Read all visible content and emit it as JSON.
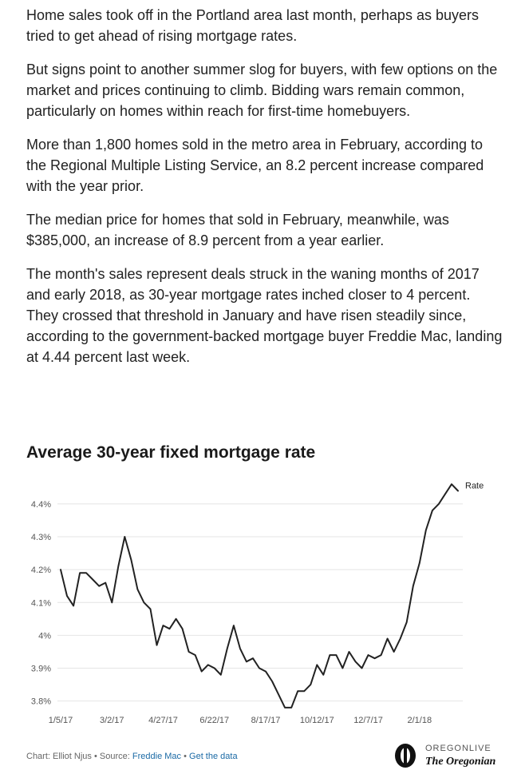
{
  "article": {
    "paragraphs": [
      "Home sales took off in the Portland area last month, perhaps as buyers tried to get ahead of rising mortgage rates.",
      "But signs point to another summer slog for buyers, with few options on the market and prices continuing to climb. Bidding wars remain common, particularly on homes within reach for first-time homebuyers.",
      "More than 1,800 homes sold in the metro area in February, according to the Regional Multiple Listing Service, an 8.2 percent increase compared with the year prior.",
      "The median price for homes that sold in February, meanwhile, was $385,000, an increase of 8.9 percent from a year earlier.",
      "The month's sales represent deals struck in the waning months of 2017 and early 2018, as 30-year mortgage rates inched closer to 4 percent. They crossed that threshold in January and have risen steadily since, according to the government-backed mortgage buyer Freddie Mac, landing at 4.44 percent last week."
    ]
  },
  "chart_data": {
    "type": "line",
    "title": "Average 30-year fixed mortgage rate",
    "xlabel": "",
    "ylabel": "",
    "ylim": [
      3.77,
      4.48
    ],
    "yticks": [
      3.8,
      3.9,
      4.0,
      4.1,
      4.2,
      4.3,
      4.4
    ],
    "ytick_labels": [
      "3.8%",
      "3.9%",
      "4%",
      "4.1%",
      "4.2%",
      "4.3%",
      "4.4%"
    ],
    "xtick_labels": [
      "1/5/17",
      "3/2/17",
      "4/27/17",
      "6/22/17",
      "8/17/17",
      "10/12/17",
      "12/7/17",
      "2/1/18"
    ],
    "xtick_index": [
      0,
      8,
      16,
      24,
      32,
      40,
      48,
      56
    ],
    "grid": true,
    "legend_position": "end-of-line",
    "series": [
      {
        "name": "Rate",
        "color": "#222222",
        "values": [
          4.2,
          4.12,
          4.09,
          4.19,
          4.19,
          4.17,
          4.15,
          4.16,
          4.1,
          4.21,
          4.3,
          4.23,
          4.14,
          4.1,
          4.08,
          3.97,
          4.03,
          4.02,
          4.05,
          4.02,
          3.95,
          3.94,
          3.89,
          3.91,
          3.9,
          3.88,
          3.96,
          4.03,
          3.96,
          3.92,
          3.93,
          3.9,
          3.89,
          3.86,
          3.82,
          3.78,
          3.78,
          3.83,
          3.83,
          3.85,
          3.91,
          3.88,
          3.94,
          3.94,
          3.9,
          3.95,
          3.92,
          3.9,
          3.94,
          3.93,
          3.94,
          3.99,
          3.95,
          3.99,
          4.04,
          4.15,
          4.22,
          4.32,
          4.38,
          4.4,
          4.43,
          4.46,
          4.44
        ]
      }
    ]
  },
  "footer": {
    "credit": "Chart: Elliot Njus",
    "separator": "•",
    "source_label": "Source:",
    "source_link": "Freddie Mac",
    "data_link": "Get the data"
  },
  "logo": {
    "top": "OREGONLIVE",
    "bottom": "The Oregonian"
  }
}
